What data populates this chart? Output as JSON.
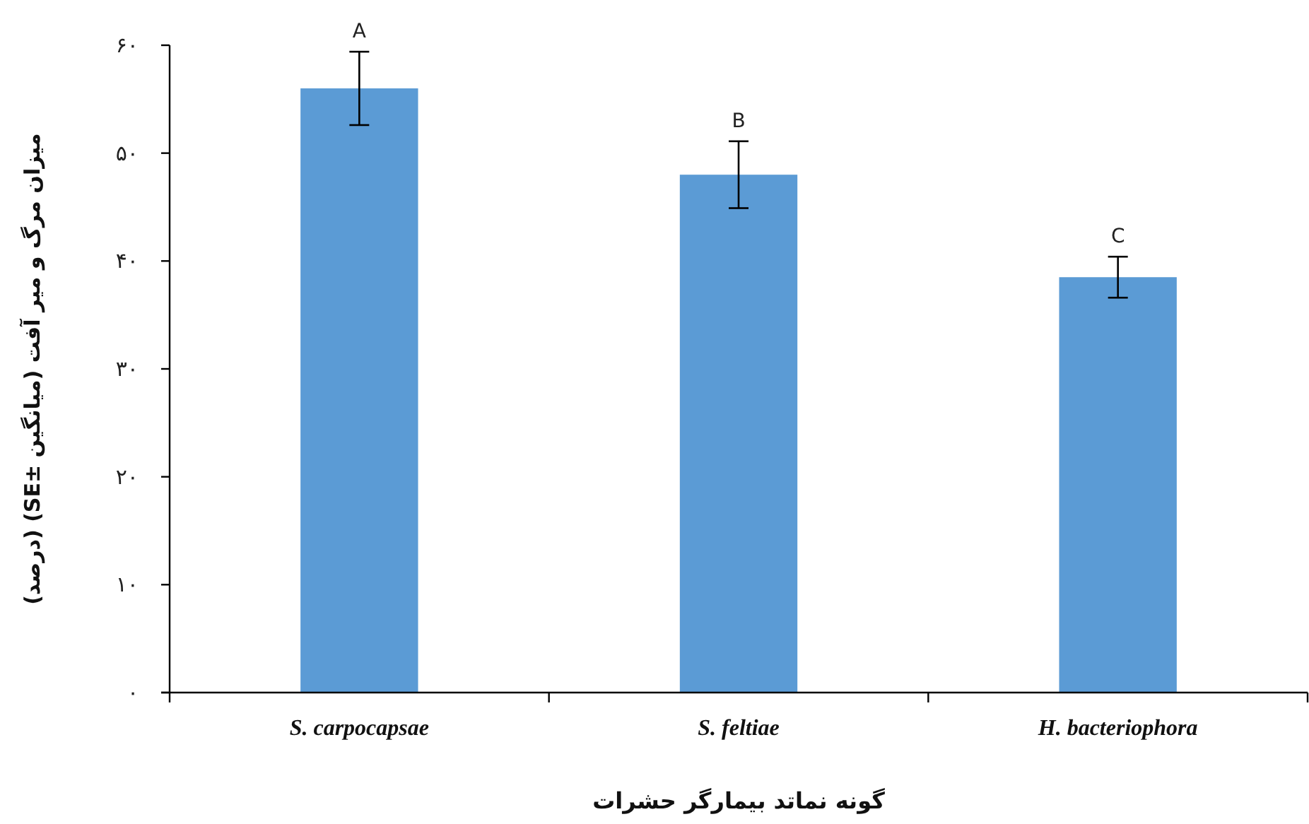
{
  "chart_data": {
    "type": "bar",
    "categories": [
      "S. carpocapsae",
      "S. feltiae",
      "H. bacteriophora"
    ],
    "values": [
      56,
      48,
      38.5
    ],
    "errors": [
      3.4,
      3.1,
      1.9
    ],
    "color": "#5b9bd5",
    "xlabel": "گونه نماتد بیمارگر حشرات",
    "ylabel": "میزان مرگ و میر آفت (میانگین ±SE) (درصد)",
    "ylim": [
      0,
      60
    ],
    "yticks": [
      {
        "value": 0,
        "label": "۰"
      },
      {
        "value": 10,
        "label": "۱۰"
      },
      {
        "value": 20,
        "label": "۲۰"
      },
      {
        "value": 30,
        "label": "۳۰"
      },
      {
        "value": 40,
        "label": "۴۰"
      },
      {
        "value": 50,
        "label": "۵۰"
      },
      {
        "value": 60,
        "label": "۶۰"
      }
    ],
    "annotations": [
      {
        "text": "A",
        "x": "S. carpocapsae",
        "y": 59.4
      },
      {
        "text": "B",
        "x": "S. feltiae",
        "y": 51.1
      },
      {
        "text": "C",
        "x": "H. bacteriophora",
        "y": 40.4
      }
    ],
    "grid": false
  }
}
